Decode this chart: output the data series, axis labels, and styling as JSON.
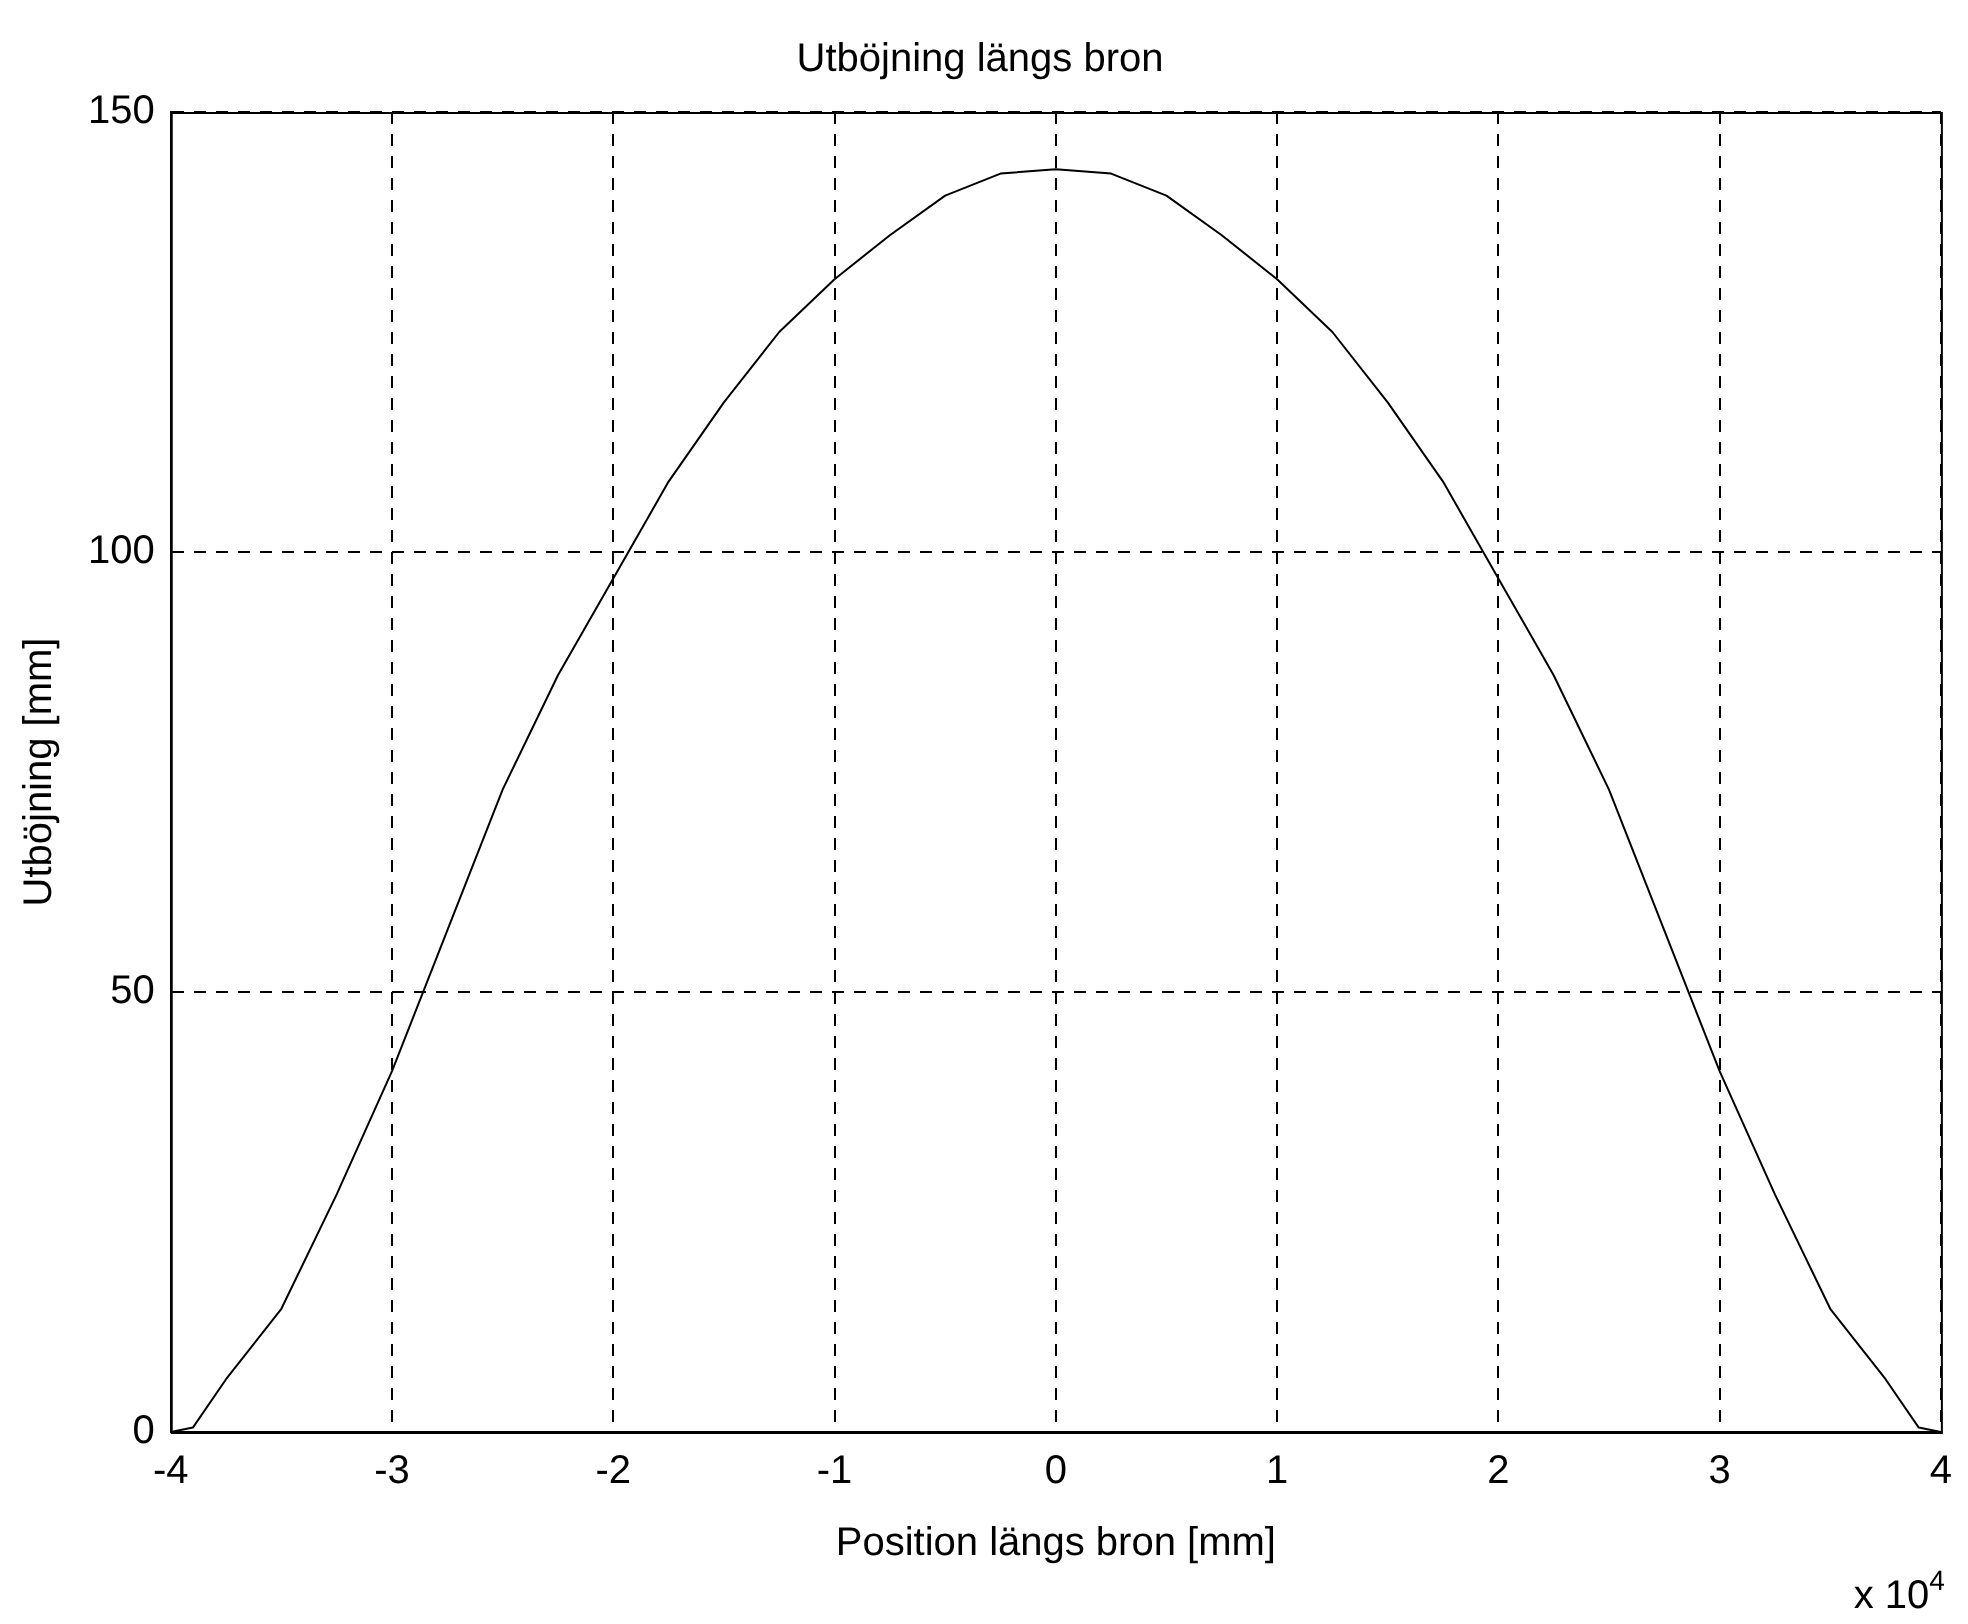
{
  "chart_data": {
    "type": "line",
    "title": "Utböjning längs bron",
    "xlabel": "Position längs bron [mm]",
    "ylabel": "Utböjning [mm]",
    "annotations": [
      "x 10$^{4}$"
    ],
    "x": [
      -4,
      -3.9,
      -3.75,
      -3.5,
      -3.25,
      -3,
      -2.75,
      -2.5,
      -2.25,
      -2,
      -1.75,
      -1.5,
      -1.25,
      -1,
      -0.75,
      -0.5,
      -0.25,
      0,
      0.25,
      0.5,
      0.75,
      1,
      1.25,
      1.5,
      1.75,
      2,
      2.25,
      2.5,
      2.75,
      3,
      3.25,
      3.5,
      3.75,
      3.9,
      4
    ],
    "series": [
      {
        "color": "#000000",
        "values": [
          0,
          0.5,
          6,
          14,
          27,
          41,
          57,
          73,
          86,
          97,
          108,
          117,
          125,
          131,
          136,
          140.5,
          143,
          143.5,
          143,
          140.5,
          136,
          131,
          125,
          117,
          108,
          97,
          86,
          73,
          57,
          41,
          27,
          14,
          6,
          0.5,
          0
        ]
      }
    ],
    "xlim": [
      -4,
      4
    ],
    "ylim": [
      0,
      150
    ],
    "xticks": [
      -4,
      -3,
      -2,
      -1,
      0,
      1,
      2,
      3,
      4
    ],
    "yticks": [
      0,
      50,
      100,
      150
    ],
    "grid": true,
    "legend": false,
    "marker": "none",
    "line_style": "solid"
  }
}
